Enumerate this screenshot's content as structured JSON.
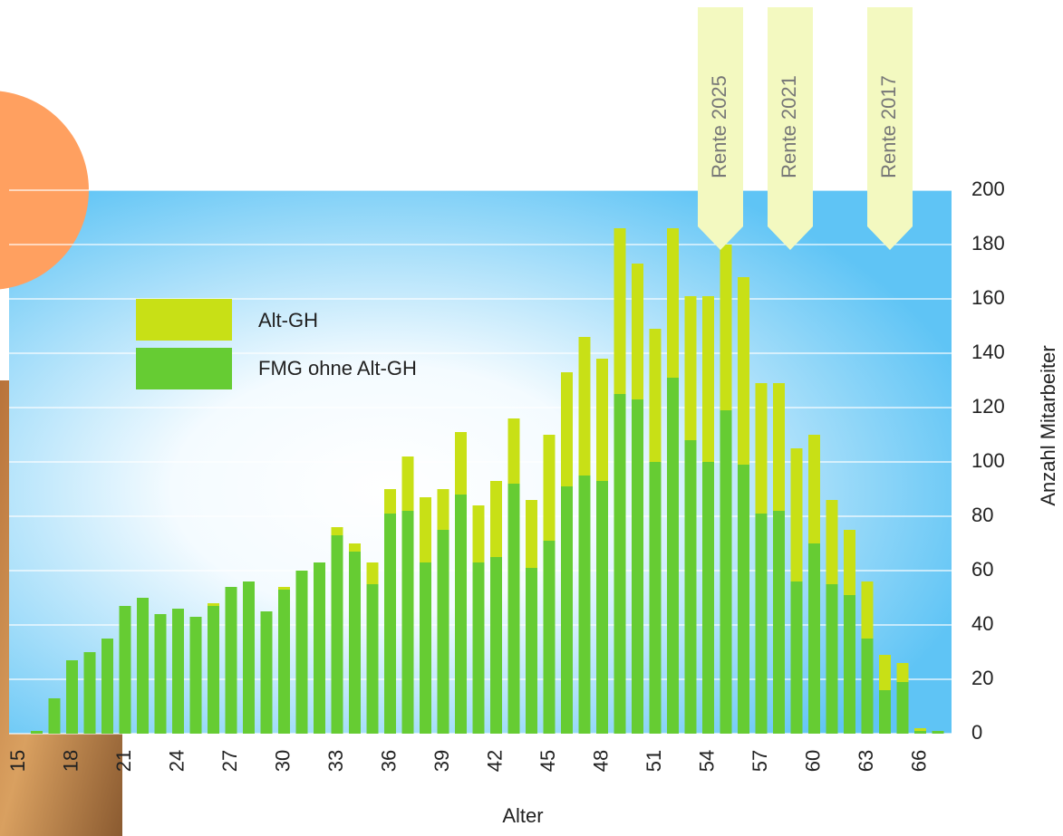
{
  "chart_data": {
    "type": "stacked-bar",
    "x_label": "Alter",
    "y_label": "Anzahl Mitarbeiter",
    "categories": [
      "15",
      null,
      null,
      "18",
      null,
      null,
      "21",
      null,
      null,
      "24",
      null,
      null,
      "27",
      null,
      null,
      "30",
      null,
      null,
      "33",
      null,
      null,
      "36",
      null,
      null,
      "39",
      null,
      null,
      "42",
      null,
      null,
      "45",
      null,
      null,
      "48",
      null,
      null,
      "51",
      null,
      null,
      "54",
      null,
      null,
      "57",
      null,
      null,
      "60",
      null,
      null,
      "63",
      null,
      null,
      "66",
      null
    ],
    "series": [
      {
        "name": "FMG ohne Alt-GH",
        "color": "#66cc33",
        "values": [
          0,
          1,
          13,
          27,
          30,
          35,
          47,
          50,
          44,
          46,
          43,
          47,
          54,
          56,
          45,
          53,
          60,
          63,
          73,
          67,
          55,
          81,
          82,
          63,
          75,
          88,
          63,
          65,
          92,
          61,
          71,
          91,
          95,
          93,
          125,
          123,
          100,
          131,
          108,
          100,
          119,
          99,
          81,
          82,
          56,
          70,
          55,
          51,
          35,
          16,
          19,
          1,
          1
        ]
      },
      {
        "name": "Alt-GH",
        "color": "#c8e016",
        "values": [
          0,
          0,
          0,
          0,
          0,
          0,
          0,
          0,
          0,
          0,
          0,
          1,
          0,
          0,
          0,
          1,
          0,
          0,
          3,
          3,
          8,
          9,
          20,
          24,
          15,
          23,
          21,
          28,
          24,
          25,
          39,
          42,
          51,
          45,
          61,
          50,
          49,
          55,
          53,
          61,
          61,
          69,
          48,
          47,
          49,
          40,
          31,
          24,
          21,
          13,
          7,
          1,
          0
        ]
      }
    ],
    "ylim": [
      0,
      200
    ],
    "yticks": [
      0,
      20,
      40,
      60,
      80,
      100,
      120,
      140,
      160,
      180,
      200
    ],
    "grid": true,
    "annotations": [
      "Rente 2025",
      "Rente 2021",
      "Rente 2017"
    ]
  }
}
